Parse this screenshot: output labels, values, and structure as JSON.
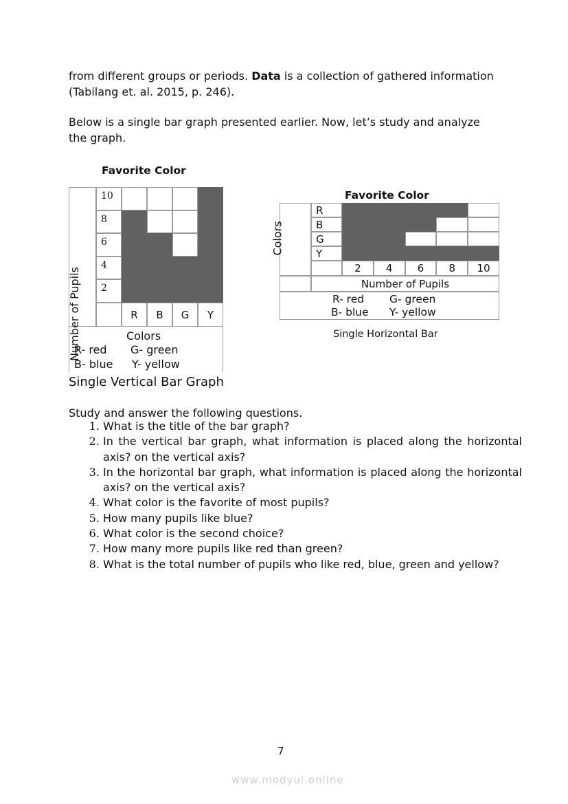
{
  "intro": {
    "p1_start": "from different groups or periods. ",
    "p1_bold": "Data",
    "p1_end": " is a collection of gathered information (Tabilang et. al. 2015, p. 246).",
    "p2": "Below is a single bar graph presented earlier. Now, let’s study and analyze the graph."
  },
  "chart_data": [
    {
      "type": "bar",
      "orientation": "vertical",
      "title": "Favorite Color",
      "categories": [
        "R",
        "B",
        "G",
        "Y"
      ],
      "values": [
        8,
        6,
        4,
        10
      ],
      "ylim": [
        0,
        10
      ],
      "yticks": [
        "10",
        "8",
        "6",
        "4",
        "2"
      ],
      "xlabel": "Colors",
      "ylabel": "Number of Pupils",
      "legend": [
        "R- red",
        "G- green",
        "B- blue",
        "Y- yellow"
      ],
      "caption": "Single Vertical Bar Graph",
      "bar_color": "#616161"
    },
    {
      "type": "bar",
      "orientation": "horizontal",
      "title": "Favorite Color",
      "categories": [
        "R",
        "B",
        "G",
        "Y"
      ],
      "values": [
        8,
        6,
        4,
        10
      ],
      "xlim": [
        0,
        10
      ],
      "xticks": [
        "2",
        "4",
        "6",
        "8",
        "10"
      ],
      "xlabel": "Number of Pupils",
      "ylabel": "Colors",
      "legend": [
        "R- red",
        "G- green",
        "B- blue",
        "Y- yellow"
      ],
      "caption": "Single Horizontal Bar",
      "bar_color": "#616161"
    }
  ],
  "questions": {
    "intro": "Study and answer the following questions.",
    "items": [
      "What is the title of the bar graph?",
      "In the vertical bar graph, what information is placed along the horizontal axis? on the vertical axis?",
      "In the horizontal bar graph, what information is placed along the horizontal axis? on the vertical axis?",
      "What color is the favorite of most pupils?",
      "How many pupils like blue?",
      "What color is the second choice?",
      "How many more pupils like red than green?",
      "What is the total number of pupils who like red, blue, green and yellow?"
    ]
  },
  "page_number": "7",
  "watermark": "www.modyul.online"
}
